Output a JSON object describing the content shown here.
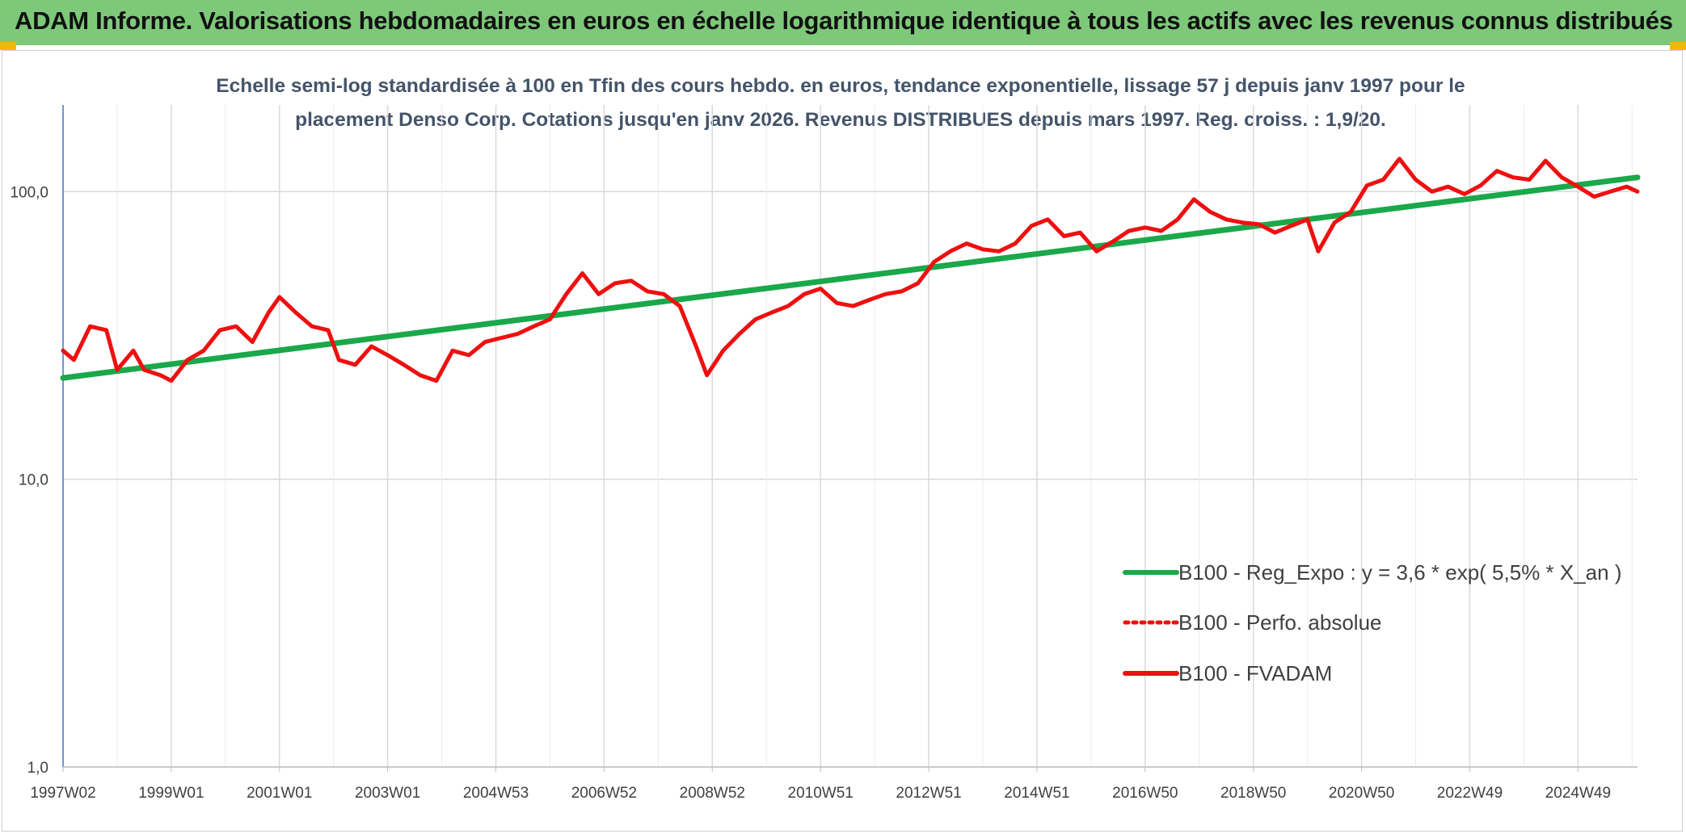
{
  "header": {
    "title": "ADAM Informe. Valorisations hebdomadaires en euros en échelle logarithmique identique à tous les actifs avec les revenus connus distribués"
  },
  "colors": {
    "banner": "#7ec87a",
    "corner": "#f5b800",
    "trend": "#1aa84a",
    "series": "#ee1010",
    "grid": "#d9d9d9",
    "axis": "#4472c4"
  },
  "chart_data": {
    "type": "line",
    "yscale": "log",
    "title_line1": "Echelle semi-log standardisée à 100 en Tfin des cours hebdo. en euros, tendance exponentielle, lissage 57 j depuis janv 1997 pour le",
    "title_line2": "placement Denso Corp. Cotations jusqu'en janv 2026. Revenus DISTRIBUES depuis mars 1997. Reg. croiss. : 1,9/20.",
    "ylim": [
      1,
      200
    ],
    "xlim": [
      1997.0,
      2026.1
    ],
    "y_ticks": [
      {
        "value": 1,
        "label": "1,0"
      },
      {
        "value": 10,
        "label": "10,0"
      },
      {
        "value": 100,
        "label": "100,0"
      }
    ],
    "x_ticks": [
      {
        "value": 1997.0,
        "label": "1997W02"
      },
      {
        "value": 1999.0,
        "label": "1999W01"
      },
      {
        "value": 2001.0,
        "label": "2001W01"
      },
      {
        "value": 2003.0,
        "label": "2003W01"
      },
      {
        "value": 2005.0,
        "label": "2004W53"
      },
      {
        "value": 2007.0,
        "label": "2006W52"
      },
      {
        "value": 2009.0,
        "label": "2008W52"
      },
      {
        "value": 2011.0,
        "label": "2010W51"
      },
      {
        "value": 2013.0,
        "label": "2012W51"
      },
      {
        "value": 2015.0,
        "label": "2014W51"
      },
      {
        "value": 2017.0,
        "label": "2016W50"
      },
      {
        "value": 2019.0,
        "label": "2018W50"
      },
      {
        "value": 2021.0,
        "label": "2020W50"
      },
      {
        "value": 2023.0,
        "label": "2022W49"
      },
      {
        "value": 2025.0,
        "label": "2024W49"
      }
    ],
    "legend": [
      {
        "label": "B100 - Reg_Expo : y = 3,6 * exp( 5,5% *  X_an )",
        "color": "#1aa84a",
        "style": "solid"
      },
      {
        "label": "B100 - Perfo. absolue",
        "color": "#ee1010",
        "style": "dotted"
      },
      {
        "label": "B100 - FVADAM",
        "color": "#ee1010",
        "style": "solid"
      }
    ],
    "series": [
      {
        "name": "B100 - Reg_Expo : y = 3,6 * exp( 5,5% *  X_an )",
        "color": "#1aa84a",
        "x": [
          1997.0,
          2026.1
        ],
        "values": [
          22.5,
          112
        ]
      },
      {
        "name": "B100 - FVADAM",
        "color": "#ee1010",
        "x": [
          1997.0,
          1997.2,
          1997.5,
          1997.8,
          1998.0,
          1998.3,
          1998.5,
          1998.8,
          1999.0,
          1999.3,
          1999.6,
          1999.9,
          2000.2,
          2000.5,
          2000.8,
          2001.0,
          2001.3,
          2001.6,
          2001.9,
          2002.1,
          2002.4,
          2002.7,
          2003.0,
          2003.3,
          2003.6,
          2003.9,
          2004.2,
          2004.5,
          2004.8,
          2005.1,
          2005.4,
          2005.7,
          2006.0,
          2006.3,
          2006.6,
          2006.9,
          2007.2,
          2007.5,
          2007.8,
          2008.1,
          2008.4,
          2008.7,
          2008.9,
          2009.2,
          2009.5,
          2009.8,
          2010.1,
          2010.4,
          2010.7,
          2011.0,
          2011.3,
          2011.6,
          2011.9,
          2012.2,
          2012.5,
          2012.8,
          2013.1,
          2013.4,
          2013.7,
          2014.0,
          2014.3,
          2014.6,
          2014.9,
          2015.2,
          2015.5,
          2015.8,
          2016.1,
          2016.4,
          2016.7,
          2017.0,
          2017.3,
          2017.6,
          2017.9,
          2018.2,
          2018.5,
          2018.8,
          2019.1,
          2019.4,
          2019.7,
          2020.0,
          2020.2,
          2020.5,
          2020.8,
          2021.1,
          2021.4,
          2021.7,
          2022.0,
          2022.3,
          2022.6,
          2022.9,
          2023.2,
          2023.5,
          2023.8,
          2024.1,
          2024.4,
          2024.7,
          2025.0,
          2025.3,
          2025.6,
          2025.9,
          2026.1
        ],
        "values": [
          28,
          26,
          34,
          33,
          24,
          28,
          24,
          23,
          22,
          26,
          28,
          33,
          34,
          30,
          38,
          43,
          38,
          34,
          33,
          26,
          25,
          29,
          27,
          25,
          23,
          22,
          28,
          27,
          30,
          31,
          32,
          34,
          36,
          44,
          52,
          44,
          48,
          49,
          45,
          44,
          40,
          29,
          23,
          28,
          32,
          36,
          38,
          40,
          44,
          46,
          41,
          40,
          42,
          44,
          45,
          48,
          57,
          62,
          66,
          63,
          62,
          66,
          76,
          80,
          70,
          72,
          62,
          67,
          73,
          75,
          73,
          80,
          94,
          85,
          80,
          78,
          77,
          72,
          76,
          80,
          62,
          78,
          85,
          105,
          110,
          130,
          110,
          100,
          104,
          98,
          105,
          118,
          112,
          110,
          128,
          112,
          104,
          96,
          100,
          104,
          100
        ]
      }
    ]
  }
}
